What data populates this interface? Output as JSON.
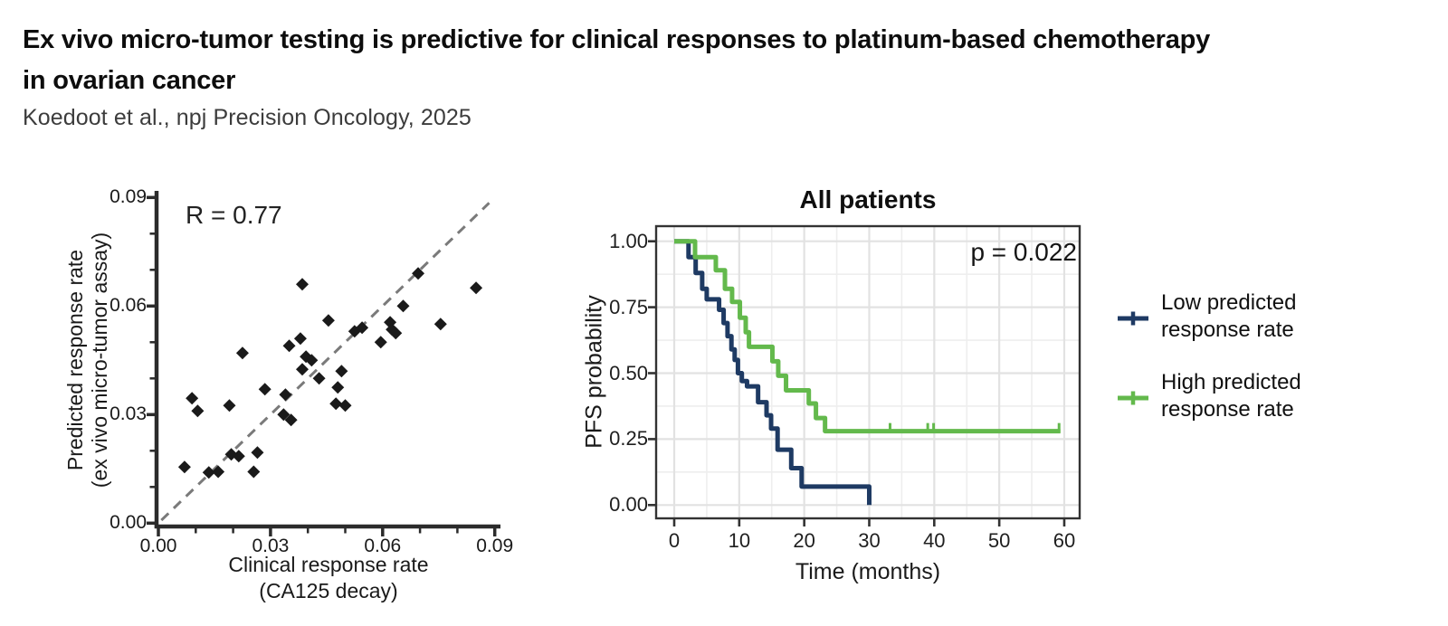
{
  "header": {
    "title_line1": "Ex vivo micro-tumor testing is predictive for clinical responses to platinum-based chemotherapy",
    "title_line2": "in ovarian cancer",
    "citation": "Koedoot et al., npj Precision Oncology, 2025"
  },
  "colors": {
    "navy": "#1e3a63",
    "green": "#63b94c",
    "scatter_point": "#1a1a1a",
    "scatter_axis": "#2b2b2b",
    "identity_dash": "#7a7a7a",
    "km_grid_major": "#e2e2e2",
    "km_grid_minor": "#eeeeee",
    "km_border": "#333333",
    "km_tick": "#333333"
  },
  "legend": {
    "items": [
      {
        "label": "Low predicted response rate",
        "color_key": "navy"
      },
      {
        "label": "High predicted response rate",
        "color_key": "green"
      }
    ]
  },
  "chart_data": [
    {
      "type": "scatter",
      "annotation": "R = 0.77",
      "xlabel_line1": "Clinical response rate",
      "xlabel_line2": "(CA125 decay)",
      "ylabel_line1": "Predicted response rate",
      "ylabel_line2": "(ex vivo micro-tumor assay)",
      "xlim": [
        0,
        0.09
      ],
      "ylim": [
        0,
        0.09
      ],
      "xticks": [
        0,
        0.03,
        0.06,
        0.09
      ],
      "xtick_labels": [
        "0.00",
        "0.03",
        "0.06",
        "0.09"
      ],
      "yticks": [
        0,
        0.03,
        0.06,
        0.09
      ],
      "ytick_labels": [
        "0.00",
        "0.03",
        "0.06",
        "0.09"
      ],
      "minor_tick_step": 0.01,
      "identity_line": {
        "from": [
          0.0008,
          0.0008
        ],
        "to": [
          0.0885,
          0.0885
        ],
        "style": "dashed"
      },
      "points": [
        [
          0.007,
          0.0155
        ],
        [
          0.009,
          0.0345
        ],
        [
          0.0105,
          0.031
        ],
        [
          0.0135,
          0.014
        ],
        [
          0.016,
          0.0142
        ],
        [
          0.019,
          0.0325
        ],
        [
          0.0195,
          0.019
        ],
        [
          0.0215,
          0.0185
        ],
        [
          0.0225,
          0.047
        ],
        [
          0.0255,
          0.0142
        ],
        [
          0.0265,
          0.0195
        ],
        [
          0.0285,
          0.037
        ],
        [
          0.0335,
          0.03
        ],
        [
          0.034,
          0.0355
        ],
        [
          0.0355,
          0.0285
        ],
        [
          0.035,
          0.049
        ],
        [
          0.038,
          0.051
        ],
        [
          0.0385,
          0.066
        ],
        [
          0.0395,
          0.046
        ],
        [
          0.041,
          0.045
        ],
        [
          0.0385,
          0.0425
        ],
        [
          0.043,
          0.04
        ],
        [
          0.0455,
          0.056
        ],
        [
          0.0475,
          0.033
        ],
        [
          0.048,
          0.0375
        ],
        [
          0.049,
          0.042
        ],
        [
          0.05,
          0.0325
        ],
        [
          0.0525,
          0.053
        ],
        [
          0.0545,
          0.054
        ],
        [
          0.0595,
          0.05
        ],
        [
          0.062,
          0.0555
        ],
        [
          0.0625,
          0.0535
        ],
        [
          0.0635,
          0.0525
        ],
        [
          0.0655,
          0.06
        ],
        [
          0.0695,
          0.069
        ],
        [
          0.0755,
          0.055
        ],
        [
          0.085,
          0.065
        ]
      ]
    },
    {
      "type": "line",
      "subtype": "kaplan-meier",
      "title": "All patients",
      "p_value": "p = 0.022",
      "xlabel": "Time (months)",
      "ylabel": "PFS probability",
      "xlim": [
        0,
        60
      ],
      "ylim": [
        0,
        1
      ],
      "xticks": [
        0,
        10,
        20,
        30,
        40,
        50,
        60
      ],
      "xtick_labels": [
        "0",
        "10",
        "20",
        "30",
        "40",
        "50",
        "60"
      ],
      "yticks": [
        0,
        0.25,
        0.5,
        0.75,
        1.0
      ],
      "ytick_labels": [
        "0.00",
        "0.25",
        "0.50",
        "0.75",
        "1.00"
      ],
      "grid": true,
      "series": [
        {
          "name": "Low predicted response rate",
          "color_key": "navy",
          "steps": [
            [
              0,
              1.0
            ],
            [
              2.2,
              0.94
            ],
            [
              3.3,
              0.88
            ],
            [
              4.3,
              0.82
            ],
            [
              5.0,
              0.78
            ],
            [
              6.9,
              0.74
            ],
            [
              7.6,
              0.69
            ],
            [
              8.2,
              0.64
            ],
            [
              8.8,
              0.59
            ],
            [
              9.3,
              0.55
            ],
            [
              9.8,
              0.5
            ],
            [
              10.4,
              0.47
            ],
            [
              11.2,
              0.45
            ],
            [
              12.9,
              0.39
            ],
            [
              14.2,
              0.34
            ],
            [
              14.9,
              0.29
            ],
            [
              15.9,
              0.21
            ],
            [
              18.0,
              0.14
            ],
            [
              19.6,
              0.07
            ],
            [
              30,
              0.0
            ]
          ],
          "end_time": 30,
          "censors": []
        },
        {
          "name": "High predicted response rate",
          "color_key": "green",
          "steps": [
            [
              0,
              1.0
            ],
            [
              3.2,
              0.94
            ],
            [
              6.4,
              0.89
            ],
            [
              7.8,
              0.82
            ],
            [
              8.9,
              0.77
            ],
            [
              10.1,
              0.71
            ],
            [
              11.0,
              0.655
            ],
            [
              11.5,
              0.6
            ],
            [
              15.1,
              0.545
            ],
            [
              16.0,
              0.49
            ],
            [
              17.2,
              0.435
            ],
            [
              20.7,
              0.385
            ],
            [
              21.8,
              0.33
            ],
            [
              23.2,
              0.28
            ]
          ],
          "end_time": 59.4,
          "censors": [
            33.2,
            39.0,
            39.9,
            59.2
          ]
        }
      ]
    }
  ]
}
